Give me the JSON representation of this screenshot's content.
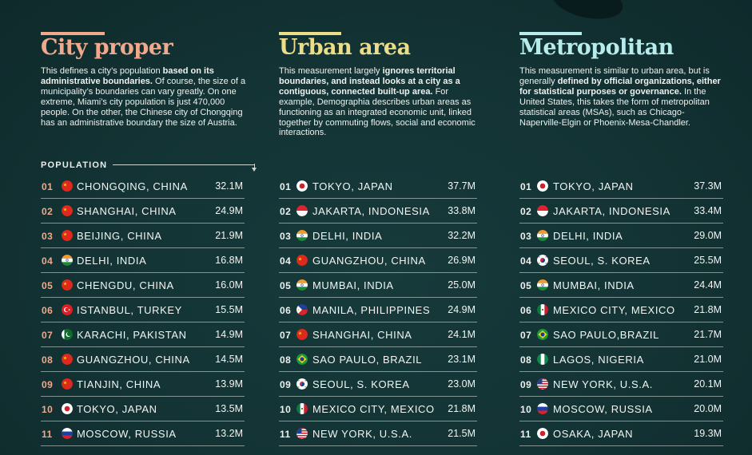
{
  "columns": [
    {
      "title": "City proper",
      "accent": "#f0a98d",
      "desc": [
        {
          "t": "This defines a city’s population ",
          "b": false
        },
        {
          "t": "based on its administrative boundaries.",
          "b": true
        },
        {
          "t": " Of course, the size of a municipality’s boundaries can vary greatly. On one extreme, Miami’s city population is just 470,000 people. On the other, the Chinese city of Chongqing has an administrative boundary the size of Austria.",
          "b": false
        }
      ],
      "population_label": "POPULATION",
      "rows": [
        {
          "rank": "01",
          "flag": "china",
          "city": "CHONGQING, CHINA",
          "value": "32.1M"
        },
        {
          "rank": "02",
          "flag": "china",
          "city": "SHANGHAI, CHINA",
          "value": "24.9M"
        },
        {
          "rank": "03",
          "flag": "china",
          "city": "BEIJING, CHINA",
          "value": "21.9M"
        },
        {
          "rank": "04",
          "flag": "india",
          "city": "DELHI, INDIA",
          "value": "16.8M"
        },
        {
          "rank": "05",
          "flag": "china",
          "city": "CHENGDU, CHINA",
          "value": "16.0M"
        },
        {
          "rank": "06",
          "flag": "turkey",
          "city": "ISTANBUL, TURKEY",
          "value": "15.5M"
        },
        {
          "rank": "07",
          "flag": "pakistan",
          "city": "KARACHI, PAKISTAN",
          "value": "14.9M"
        },
        {
          "rank": "08",
          "flag": "china",
          "city": "GUANGZHOU, CHINA",
          "value": "14.5M"
        },
        {
          "rank": "09",
          "flag": "china",
          "city": "TIANJIN, CHINA",
          "value": "13.9M"
        },
        {
          "rank": "10",
          "flag": "japan",
          "city": "TOKYO, JAPAN",
          "value": "13.5M"
        },
        {
          "rank": "11",
          "flag": "russia",
          "city": "MOSCOW, RUSSIA",
          "value": "13.2M"
        }
      ]
    },
    {
      "title": "Urban area",
      "accent": "#ecdd8a",
      "desc": [
        {
          "t": "This measurement largely ",
          "b": false
        },
        {
          "t": "ignores territorial boundaries, and instead looks at a city as a contiguous, connected built-up area.",
          "b": true
        },
        {
          "t": " For example, Demographia describes urban areas as functioning as an integrated economic unit, linked together by commuting flows, social and economic interactions.",
          "b": false
        }
      ],
      "rows": [
        {
          "rank": "01",
          "flag": "japan",
          "city": "TOKYO, JAPAN",
          "value": "37.7M"
        },
        {
          "rank": "02",
          "flag": "indonesia",
          "city": "JAKARTA, INDONESIA",
          "value": "33.8M"
        },
        {
          "rank": "03",
          "flag": "india",
          "city": "DELHI, INDIA",
          "value": "32.2M"
        },
        {
          "rank": "04",
          "flag": "china",
          "city": "GUANGZHOU, CHINA",
          "value": "26.9M"
        },
        {
          "rank": "05",
          "flag": "india",
          "city": "MUMBAI, INDIA",
          "value": "25.0M"
        },
        {
          "rank": "06",
          "flag": "philippines",
          "city": "MANILA, PHILIPPINES",
          "value": "24.9M"
        },
        {
          "rank": "07",
          "flag": "china",
          "city": "SHANGHAI, CHINA",
          "value": "24.1M"
        },
        {
          "rank": "08",
          "flag": "brazil",
          "city": "SAO PAULO, BRAZIL",
          "value": "23.1M"
        },
        {
          "rank": "09",
          "flag": "korea",
          "city": "SEOUL, S. KOREA",
          "value": "23.0M"
        },
        {
          "rank": "10",
          "flag": "mexico",
          "city": "MEXICO CITY, MEXICO",
          "value": "21.8M"
        },
        {
          "rank": "11",
          "flag": "usa",
          "city": "NEW YORK, U.S.A.",
          "value": "21.5M"
        }
      ]
    },
    {
      "title": "Metropolitan",
      "accent": "#b6ecec",
      "desc": [
        {
          "t": "This measurement is similar to urban area, but is generally ",
          "b": false
        },
        {
          "t": "defined by official organizations, either for statistical purposes or governance.",
          "b": true
        },
        {
          "t": " In the United States, this takes the form of metropolitan statistical areas (MSAs), such as Chicago-Naperville-Elgin or Phoenix-Mesa-Chandler.",
          "b": false
        }
      ],
      "rows": [
        {
          "rank": "01",
          "flag": "japan",
          "city": "TOKYO, JAPAN",
          "value": "37.3M"
        },
        {
          "rank": "02",
          "flag": "indonesia",
          "city": "JAKARTA, INDONESIA",
          "value": "33.4M"
        },
        {
          "rank": "03",
          "flag": "india",
          "city": "DELHI, INDIA",
          "value": "29.0M"
        },
        {
          "rank": "04",
          "flag": "korea",
          "city": "SEOUL, S. KOREA",
          "value": "25.5M"
        },
        {
          "rank": "05",
          "flag": "india",
          "city": "MUMBAI, INDIA",
          "value": "24.4M"
        },
        {
          "rank": "06",
          "flag": "mexico",
          "city": "MEXICO CITY, MEXICO",
          "value": "21.8M"
        },
        {
          "rank": "07",
          "flag": "brazil",
          "city": "SAO PAULO,BRAZIL",
          "value": "21.7M"
        },
        {
          "rank": "08",
          "flag": "nigeria",
          "city": "LAGOS, NIGERIA",
          "value": "21.0M"
        },
        {
          "rank": "09",
          "flag": "usa",
          "city": "NEW YORK, U.S.A.",
          "value": "20.1M"
        },
        {
          "rank": "10",
          "flag": "russia",
          "city": "MOSCOW, RUSSIA",
          "value": "20.0M"
        },
        {
          "rank": "11",
          "flag": "japan",
          "city": "OSAKA, JAPAN",
          "value": "19.3M"
        }
      ]
    }
  ]
}
